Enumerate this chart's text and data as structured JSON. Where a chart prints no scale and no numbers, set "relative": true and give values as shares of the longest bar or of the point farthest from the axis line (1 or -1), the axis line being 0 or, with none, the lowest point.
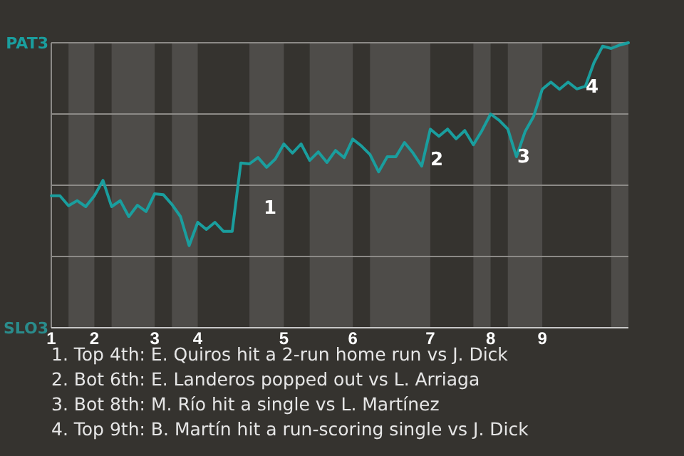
{
  "chart_data": {
    "type": "line",
    "categories": [
      "1",
      null,
      null,
      null,
      null,
      "2",
      null,
      null,
      null,
      null,
      null,
      null,
      "3",
      null,
      null,
      null,
      null,
      "4",
      null,
      null,
      null,
      null,
      null,
      null,
      null,
      null,
      null,
      "5",
      null,
      null,
      null,
      null,
      null,
      null,
      null,
      "6",
      null,
      null,
      null,
      null,
      null,
      null,
      null,
      null,
      "7",
      null,
      null,
      null,
      null,
      null,
      null,
      "8",
      null,
      null,
      null,
      null,
      null,
      "9",
      null,
      null,
      null,
      null,
      null,
      null,
      null,
      null,
      null,
      null
    ],
    "series": [
      {
        "color": "#1a9e9e",
        "values": [
          0.463,
          0.463,
          0.428,
          0.446,
          0.425,
          0.463,
          0.517,
          0.425,
          0.446,
          0.39,
          0.43,
          0.408,
          0.47,
          0.467,
          0.433,
          0.39,
          0.288,
          0.37,
          0.345,
          0.37,
          0.338,
          0.338,
          0.578,
          0.575,
          0.597,
          0.563,
          0.592,
          0.645,
          0.613,
          0.645,
          0.587,
          0.617,
          0.58,
          0.622,
          0.597,
          0.662,
          0.638,
          0.608,
          0.547,
          0.6,
          0.6,
          0.65,
          0.613,
          0.567,
          0.697,
          0.672,
          0.697,
          0.663,
          0.692,
          0.642,
          0.692,
          0.75,
          0.728,
          0.697,
          0.6,
          0.688,
          0.742,
          0.837,
          0.862,
          0.837,
          0.862,
          0.838,
          0.847,
          0.93,
          0.988,
          0.98,
          0.992,
          1
        ]
      }
    ],
    "relative": true,
    "grid": "y",
    "annotations": [
      "PAT3",
      "SLO3",
      "1",
      "2",
      "3",
      "4",
      "1. Top 4th: E. Quiros hit a 2-run home run vs J. Dick",
      "2. Bot 6th: E. Landeros popped out vs L. Arriaga",
      "3. Bot 8th: M. Río hit a single vs L. Martínez",
      "4. Top 9th: B. Martín hit a run-scoring single vs J. Dick"
    ]
  }
}
